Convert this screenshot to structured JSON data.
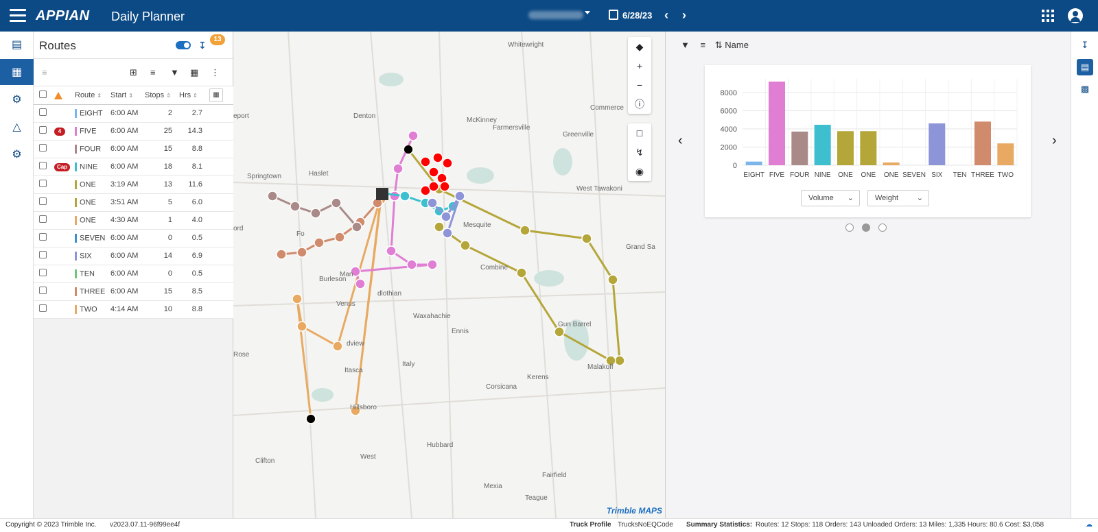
{
  "header": {
    "brand": "APPIAN",
    "app_title": "Daily Planner",
    "date": "6/28/23",
    "prev_icon": "chevron-left-icon",
    "next_icon": "chevron-right-icon"
  },
  "left_nav": {
    "items": [
      {
        "name": "dashboard",
        "icon": "card-icon"
      },
      {
        "name": "map",
        "icon": "map-icon"
      },
      {
        "name": "routes",
        "icon": "route-icon"
      },
      {
        "name": "territory",
        "icon": "territory-icon"
      },
      {
        "name": "settings",
        "icon": "gear-icon"
      }
    ]
  },
  "routes_panel": {
    "title": "Routes",
    "badge": "13",
    "columns": [
      "Route",
      "Start",
      "Stops",
      "Hrs"
    ],
    "rows": [
      {
        "flag": "",
        "name": "EIGHT",
        "color": "#7cb5ec",
        "start": "6:00 AM",
        "stops": "2",
        "hrs": "2.7"
      },
      {
        "flag": "4",
        "name": "FIVE",
        "color": "#e07ed4",
        "start": "6:00 AM",
        "stops": "25",
        "hrs": "14.3"
      },
      {
        "flag": "",
        "name": "FOUR",
        "color": "#a98a88",
        "start": "6:00 AM",
        "stops": "15",
        "hrs": "8.8"
      },
      {
        "flag": "Cap",
        "name": "NINE",
        "color": "#3dbfcf",
        "start": "6:00 AM",
        "stops": "18",
        "hrs": "8.1"
      },
      {
        "flag": "",
        "name": "ONE",
        "color": "#b5a63a",
        "start": "3:19 AM",
        "stops": "13",
        "hrs": "11.6"
      },
      {
        "flag": "",
        "name": "ONE",
        "color": "#b5a63a",
        "start": "3:51 AM",
        "stops": "5",
        "hrs": "6.0"
      },
      {
        "flag": "",
        "name": "ONE",
        "color": "#e8aa62",
        "start": "4:30 AM",
        "stops": "1",
        "hrs": "4.0"
      },
      {
        "flag": "",
        "name": "SEVEN",
        "color": "#3d8fd0",
        "start": "6:00 AM",
        "stops": "0",
        "hrs": "0.5"
      },
      {
        "flag": "",
        "name": "SIX",
        "color": "#8e94d8",
        "start": "6:00 AM",
        "stops": "14",
        "hrs": "6.9"
      },
      {
        "flag": "",
        "name": "TEN",
        "color": "#6ec77a",
        "start": "6:00 AM",
        "stops": "0",
        "hrs": "0.5"
      },
      {
        "flag": "",
        "name": "THREE",
        "color": "#d08a6c",
        "start": "6:00 AM",
        "stops": "15",
        "hrs": "8.5"
      },
      {
        "flag": "",
        "name": "TWO",
        "color": "#e8aa62",
        "start": "4:14 AM",
        "stops": "10",
        "hrs": "8.8"
      }
    ]
  },
  "map": {
    "attribution": "Trimble MAPS",
    "place_labels": [
      "Denton",
      "McKinney",
      "Whitewright",
      "Commerce",
      "Farmersville",
      "Greenville",
      "Haslet",
      "Springtown",
      "West Tawakoni",
      "Fo",
      "Mesquite",
      "Grand Sa",
      "Combine",
      "Burleson",
      "Man",
      "dlothian",
      "Waxahachie",
      "Ennis",
      "Gun Barrel",
      "Venus",
      "Italy",
      "Itasca",
      "Kerens",
      "Malakoff",
      "Corsicana",
      "Hubbard",
      "Hillsboro",
      "West",
      "Clifton",
      "Mexia",
      "Fairfield",
      "Teague",
      "Rose",
      "ord",
      "eport",
      "dview"
    ]
  },
  "chart_panel": {
    "sort_label": "Name",
    "select_1": "Volume",
    "select_2": "Weight"
  },
  "chart_data": {
    "type": "bar",
    "categories": [
      "EIGHT",
      "FIVE",
      "FOUR",
      "NINE",
      "ONE",
      "ONE",
      "ONE",
      "SEVEN",
      "SIX",
      "TEN",
      "THREE",
      "TWO"
    ],
    "values": [
      400,
      9200,
      3700,
      4450,
      3750,
      3750,
      300,
      0,
      4600,
      0,
      4800,
      2400
    ],
    "colors": [
      "#7cb5ec",
      "#e07ed4",
      "#a98a88",
      "#3dbfcf",
      "#b5a63a",
      "#b5a63a",
      "#e8aa62",
      "#3d8fd0",
      "#8e94d8",
      "#6ec77a",
      "#d08a6c",
      "#e8aa62"
    ],
    "yticks": [
      "0",
      "2000",
      "4000",
      "6000",
      "8000"
    ],
    "ylim": [
      0,
      9500
    ],
    "grid": true
  },
  "footer": {
    "copyright": "Copyright © 2023 Trimble Inc.",
    "version": "v2023.07.11-96f99ee4f",
    "truck_profile_label": "Truck Profile",
    "truck_profile_value": "TrucksNoEQCode",
    "summary_label": "Summary Statistics:",
    "summary_value": "Routes: 12 Stops: 118 Orders: 143 Unloaded Orders: 13 Miles: 1,335 Hours: 80.6 Cost: $3,058"
  }
}
